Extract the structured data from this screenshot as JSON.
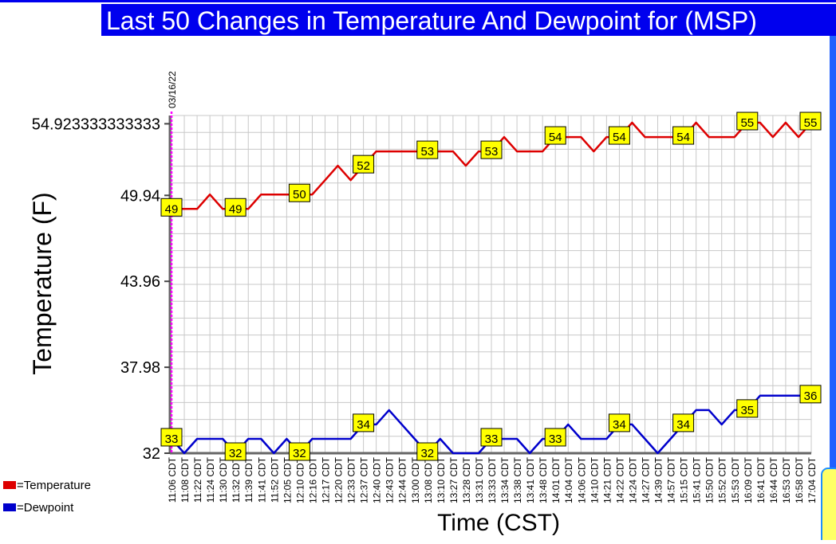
{
  "chart_data": {
    "type": "line",
    "title": "Last 50 Changes in Temperature And Dewpoint for (MSP)",
    "xlabel": "Time (CST)",
    "ylabel": "Temperature (F)",
    "date_marker": "03/16/22",
    "ylim": [
      32,
      55.5
    ],
    "y_ticks": [
      {
        "value": 32,
        "label": "32"
      },
      {
        "value": 37.98,
        "label": "37.98"
      },
      {
        "value": 43.96,
        "label": "43.96"
      },
      {
        "value": 49.94,
        "label": "49.94"
      },
      {
        "value": 54.923333333333,
        "label": "54.923333333333"
      }
    ],
    "grid": true,
    "legend_position": "bottom-left",
    "categories": [
      "11:06 CDT",
      "11:08 CDT",
      "11:22 CDT",
      "11:24 CDT",
      "11:30 CDT",
      "11:32 CDT",
      "11:39 CDT",
      "11:41 CDT",
      "11:52 CDT",
      "12:05 CDT",
      "12:10 CDT",
      "12:16 CDT",
      "12:17 CDT",
      "12:20 CDT",
      "12:33 CDT",
      "12:37 CDT",
      "12:40 CDT",
      "12:43 CDT",
      "12:44 CDT",
      "13:00 CDT",
      "13:08 CDT",
      "13:10 CDT",
      "13:27 CDT",
      "13:28 CDT",
      "13:31 CDT",
      "13:33 CDT",
      "13:34 CDT",
      "13:38 CDT",
      "13:41 CDT",
      "13:48 CDT",
      "14:01 CDT",
      "14:04 CDT",
      "14:06 CDT",
      "14:10 CDT",
      "14:21 CDT",
      "14:22 CDT",
      "14:24 CDT",
      "14:27 CDT",
      "14:39 CDT",
      "14:57 CDT",
      "15:15 CDT",
      "15:41 CDT",
      "15:50 CDT",
      "15:52 CDT",
      "15:53 CDT",
      "16:09 CDT",
      "16:41 CDT",
      "16:44 CDT",
      "16:53 CDT",
      "16:58 CDT",
      "17:04 CDT"
    ],
    "series": [
      {
        "name": "Temperature",
        "color": "#dd0000",
        "values": [
          49,
          49,
          49,
          50,
          49,
          49,
          49,
          50,
          50,
          50,
          50,
          50,
          51,
          52,
          51,
          52,
          53,
          53,
          53,
          53,
          53,
          53,
          53,
          52,
          53,
          53,
          54,
          53,
          53,
          53,
          54,
          54,
          54,
          53,
          54,
          54,
          55,
          54,
          54,
          54,
          54,
          55,
          54,
          54,
          54,
          55,
          55,
          54,
          55,
          54,
          55
        ],
        "labels": [
          {
            "index": 0,
            "text": "49"
          },
          {
            "index": 5,
            "text": "49"
          },
          {
            "index": 10,
            "text": "50"
          },
          {
            "index": 15,
            "text": "52"
          },
          {
            "index": 20,
            "text": "53"
          },
          {
            "index": 25,
            "text": "53"
          },
          {
            "index": 30,
            "text": "54"
          },
          {
            "index": 35,
            "text": "54"
          },
          {
            "index": 40,
            "text": "54"
          },
          {
            "index": 45,
            "text": "55"
          },
          {
            "index": 50,
            "text": "55"
          }
        ]
      },
      {
        "name": "Dewpoint",
        "color": "#0000cc",
        "values": [
          33,
          32,
          33,
          33,
          33,
          32,
          33,
          33,
          32,
          33,
          32,
          33,
          33,
          33,
          33,
          34,
          34,
          35,
          34,
          33,
          32,
          33,
          32,
          32,
          32,
          33,
          33,
          33,
          32,
          33,
          33,
          34,
          33,
          33,
          33,
          34,
          34,
          33,
          32,
          33,
          34,
          35,
          35,
          34,
          35,
          35,
          36,
          36,
          36,
          36,
          36
        ],
        "labels": [
          {
            "index": 0,
            "text": "33"
          },
          {
            "index": 5,
            "text": "32"
          },
          {
            "index": 10,
            "text": "32"
          },
          {
            "index": 15,
            "text": "34"
          },
          {
            "index": 20,
            "text": "32"
          },
          {
            "index": 25,
            "text": "33"
          },
          {
            "index": 30,
            "text": "33"
          },
          {
            "index": 35,
            "text": "34"
          },
          {
            "index": 40,
            "text": "34"
          },
          {
            "index": 45,
            "text": "35"
          },
          {
            "index": 50,
            "text": "36"
          }
        ]
      }
    ],
    "legend": [
      {
        "label": "=Temperature",
        "color": "#dd0000"
      },
      {
        "label": "=Dewpoint",
        "color": "#0000cc"
      }
    ]
  },
  "colors": {
    "title_bg": "#0000ee",
    "title_fg": "#ffffff",
    "grid": "#c8c8c8",
    "marker": "#ff00ff",
    "label_bg": "#ffff00"
  }
}
